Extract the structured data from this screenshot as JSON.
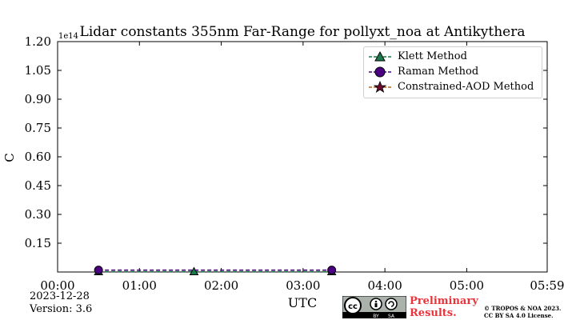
{
  "chart_data": {
    "type": "line",
    "title": "Lidar constants 355nm Far-Range for pollyxt_noa at Antikythera",
    "xlabel": "UTC",
    "ylabel": "C",
    "y_exponent_label": "1e14",
    "xlim": [
      0,
      359
    ],
    "ylim": [
      0,
      1.2
    ],
    "x_ticks": [
      {
        "value": 0,
        "label": "00:00"
      },
      {
        "value": 60,
        "label": "01:00"
      },
      {
        "value": 120,
        "label": "02:00"
      },
      {
        "value": 180,
        "label": "03:00"
      },
      {
        "value": 240,
        "label": "04:00"
      },
      {
        "value": 300,
        "label": "05:00"
      },
      {
        "value": 359,
        "label": "05:59"
      }
    ],
    "y_ticks": [
      {
        "value": 0.15,
        "label": "0.15"
      },
      {
        "value": 0.3,
        "label": "0.30"
      },
      {
        "value": 0.45,
        "label": "0.45"
      },
      {
        "value": 0.6,
        "label": "0.60"
      },
      {
        "value": 0.75,
        "label": "0.75"
      },
      {
        "value": 0.9,
        "label": "0.90"
      },
      {
        "value": 1.05,
        "label": "1.05"
      },
      {
        "value": 1.2,
        "label": "1.20"
      }
    ],
    "grid": false,
    "legend_position": "top-right",
    "series": [
      {
        "name": "Klett Method",
        "marker": "triangle",
        "color": "#1a7a4a",
        "points": [
          {
            "x": 30,
            "y": 0.002
          },
          {
            "x": 100,
            "y": 0.002
          },
          {
            "x": 201,
            "y": 0.002
          }
        ]
      },
      {
        "name": "Raman Method",
        "marker": "circle",
        "color": "#4b0082",
        "points": [
          {
            "x": 30,
            "y": 0.01
          },
          {
            "x": 201,
            "y": 0.01
          }
        ]
      },
      {
        "name": "Constrained-AOD Method",
        "marker": "star",
        "color": "#b8651a",
        "points": []
      }
    ]
  },
  "footer": {
    "date": "2023-12-28",
    "version": "Version: 3.6",
    "preliminary_line1": "Preliminary",
    "preliminary_line2": "Results.",
    "copyright_line1": "© TROPOS & NOA 2023.",
    "copyright_line2": "CC BY SA 4.0 License.",
    "badge_labels": {
      "cc": "cc",
      "by": "BY",
      "sa": "SA"
    }
  },
  "colors": {
    "klett": "#1a7a4a",
    "raman": "#4b0082",
    "constrained": "#b8651a",
    "preliminary": "#e8343b"
  }
}
